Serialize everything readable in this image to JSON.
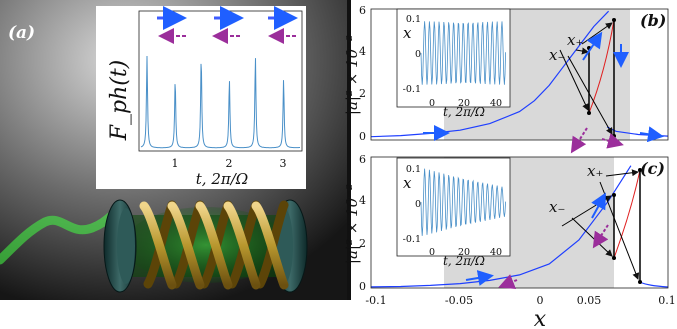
{
  "panel_a": {
    "label": "(a)",
    "inset": {
      "ylabel": "F_ph(t)",
      "xlabel": "t, 2π/Ω",
      "xticks": [
        "1",
        "2",
        "3"
      ]
    }
  },
  "panel_b": {
    "label": "(b)",
    "ylabel": "|a|² × 10⁻²",
    "yticks": [
      "0",
      "2",
      "4",
      "6"
    ],
    "x_plus": "x₊",
    "x_minus": "x₋",
    "inset": {
      "ylabel": "x",
      "xlabel": "t, 2π/Ω",
      "yticks": [
        "0.1",
        "0",
        "-0.1"
      ],
      "xticks": [
        "0",
        "20",
        "40"
      ]
    }
  },
  "panel_c": {
    "label": "(c)",
    "ylabel": "|a|² × 10⁻²",
    "yticks": [
      "0",
      "2",
      "4",
      "6"
    ],
    "x_plus": "x₊",
    "x_minus": "x₋",
    "inset": {
      "ylabel": "x",
      "xlabel": "t, 2π/Ω",
      "yticks": [
        "0.1",
        "0",
        "-0.1"
      ],
      "xticks": [
        "0",
        "20",
        "40"
      ]
    }
  },
  "shared_x": {
    "xlabel": "x",
    "xticks": [
      "-0.1",
      "-0.05",
      "0",
      "0.05",
      "0.1"
    ]
  },
  "colors": {
    "curve_stable": "#1f3fff",
    "curve_unstable": "#e02020",
    "arrow_solid": "#1f5fff",
    "arrow_dashed": "#9b2e9b",
    "shade": "#d9d9d9",
    "inset_signal": "#4a90c8",
    "laser": "#44ff44",
    "coil": "#b8972e"
  },
  "chart_data": [
    {
      "type": "line",
      "panel": "(b)",
      "title": "",
      "xlabel": "x",
      "ylabel": "|a|² × 10⁻²",
      "xlim": [
        -0.1,
        0.1
      ],
      "ylim": [
        0,
        6
      ],
      "series": [
        {
          "name": "",
          "x": [
            -0.1,
            -0.08,
            -0.06,
            -0.04,
            -0.02,
            0,
            0.01,
            0.02,
            0.03,
            0.04,
            0.05,
            0.06
          ],
          "y": [
            0.15,
            0.2,
            0.3,
            0.45,
            0.75,
            1.3,
            1.8,
            2.5,
            3.4,
            4.3,
            5.2,
            5.9
          ]
        },
        {
          "name": "",
          "x": [
            0.059,
            0.065,
            0.08,
            0.1
          ],
          "y": [
            0.6,
            0.4,
            0.25,
            0.18
          ]
        }
      ],
      "shaded_range": [
        -0.07,
        0.06
      ]
    },
    {
      "type": "line",
      "panel": "(c)",
      "title": "",
      "xlabel": "x",
      "ylabel": "|a|² × 10⁻²",
      "xlim": [
        -0.1,
        0.1
      ],
      "ylim": [
        0,
        6
      ],
      "series": [
        {
          "name": "",
          "x": [
            -0.1,
            -0.08,
            -0.06,
            -0.04,
            -0.02,
            0,
            0.02,
            0.04,
            0.06,
            0.075
          ],
          "y": [
            0.05,
            0.07,
            0.12,
            0.2,
            0.35,
            0.6,
            1.1,
            2.2,
            4.0,
            5.6
          ]
        }
      ],
      "shaded_range": [
        -0.07,
        0.06
      ]
    }
  ]
}
